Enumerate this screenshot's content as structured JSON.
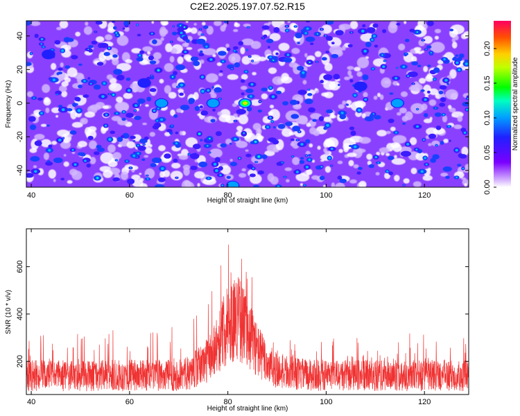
{
  "title": "C2E2.2025.197.07.52.R15",
  "chart_data": [
    {
      "type": "heatmap",
      "xlabel": "Height of straight line (km)",
      "ylabel": "Frequency (Hz)",
      "xlim": [
        39,
        129
      ],
      "ylim": [
        -50,
        49
      ],
      "xticks": [
        40,
        60,
        80,
        100,
        120
      ],
      "yticks": [
        -40,
        -20,
        0,
        20,
        40
      ],
      "colorbar": {
        "label": "Normalized spectral amplitude",
        "range": [
          0,
          0.24
        ],
        "ticks": [
          "0.00",
          "0.05",
          "0.10",
          "0.15",
          "0.20"
        ]
      },
      "hotspots": [
        {
          "x": 83.5,
          "y": 0,
          "value": 0.22
        },
        {
          "x": 77,
          "y": 0,
          "value": 0.1
        },
        {
          "x": 114.5,
          "y": 0,
          "value": 0.11
        },
        {
          "x": 66.5,
          "y": 0,
          "value": 0.1
        },
        {
          "x": 43.5,
          "y": 29,
          "value": 0.09
        },
        {
          "x": 81,
          "y": -49,
          "value": 0.1
        },
        {
          "x": 63,
          "y": 12,
          "value": 0.08
        },
        {
          "x": 107,
          "y": 10,
          "value": 0.08
        },
        {
          "x": 98,
          "y": -25,
          "value": 0.07
        }
      ]
    },
    {
      "type": "line",
      "xlabel": "Height of straight line (km)",
      "ylabel": "SNR (10 * v/v)",
      "xlim": [
        39,
        129
      ],
      "ylim": [
        60,
        760
      ],
      "xticks": [
        40,
        60,
        80,
        100,
        120
      ],
      "yticks": [
        200,
        400,
        600
      ],
      "color": "#f03232",
      "envelope": {
        "x": [
          39,
          45,
          50,
          55,
          60,
          65,
          70,
          72,
          74,
          76,
          78,
          80,
          82,
          84,
          86,
          88,
          90,
          95,
          100,
          105,
          110,
          115,
          120,
          125,
          129
        ],
        "mean": [
          140,
          140,
          138,
          140,
          140,
          140,
          142,
          150,
          175,
          210,
          280,
          360,
          390,
          330,
          250,
          190,
          160,
          145,
          140,
          140,
          140,
          140,
          140,
          140,
          140
        ],
        "max": [
          300,
          320,
          330,
          340,
          320,
          330,
          360,
          380,
          430,
          470,
          600,
          700,
          760,
          700,
          480,
          360,
          320,
          300,
          300,
          310,
          320,
          330,
          340,
          330,
          330
        ]
      }
    }
  ]
}
